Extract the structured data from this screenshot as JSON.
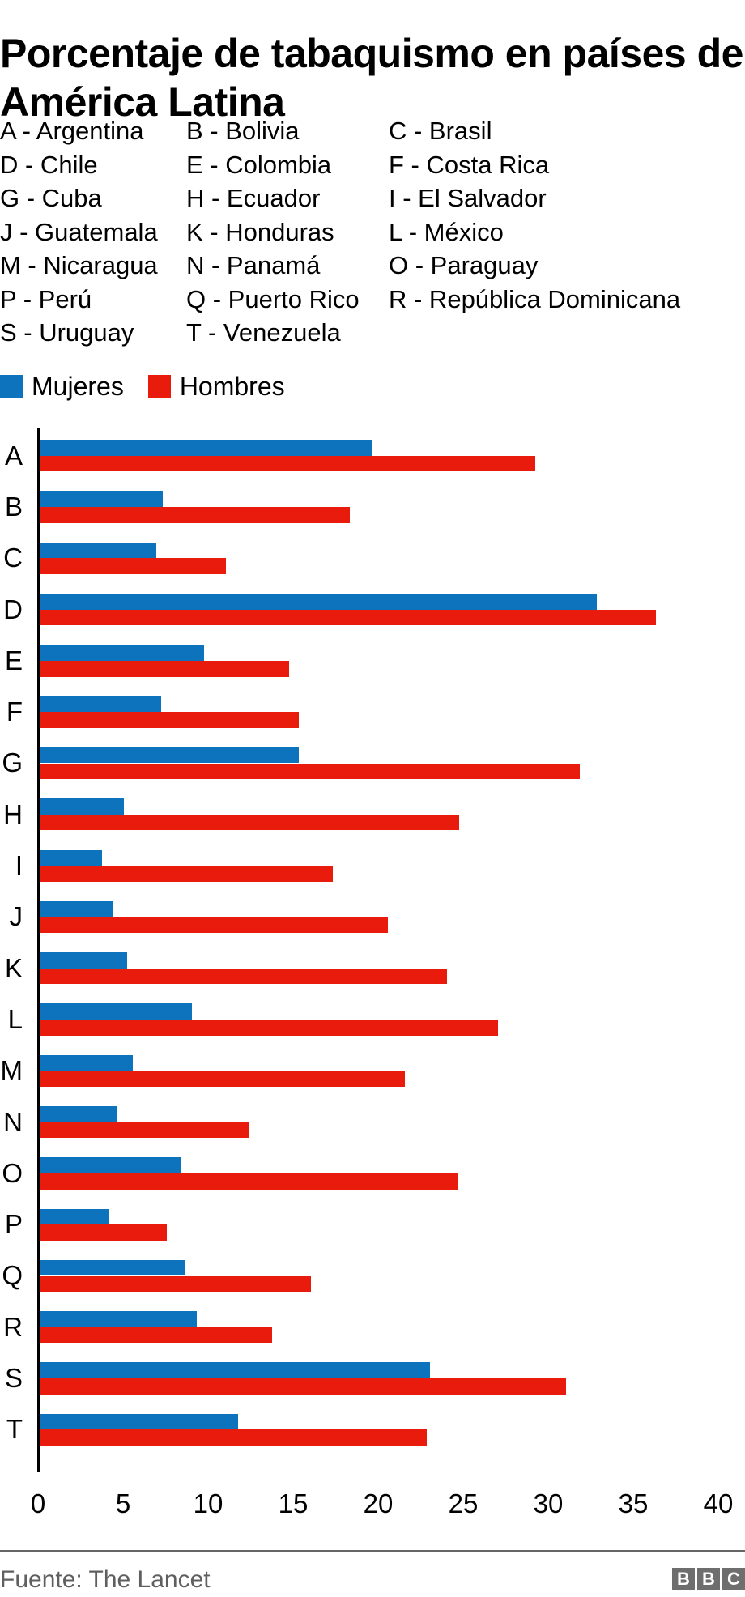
{
  "title": "Porcentaje de tabaquismo en países de América Latina",
  "country_key": [
    {
      "code": "A",
      "name": "Argentina"
    },
    {
      "code": "B",
      "name": "Bolivia"
    },
    {
      "code": "C",
      "name": "Brasil"
    },
    {
      "code": "D",
      "name": "Chile"
    },
    {
      "code": "E",
      "name": "Colombia"
    },
    {
      "code": "F",
      "name": "Costa Rica"
    },
    {
      "code": "G",
      "name": "Cuba"
    },
    {
      "code": "H",
      "name": "Ecuador"
    },
    {
      "code": "I",
      "name": "El Salvador"
    },
    {
      "code": "J",
      "name": "Guatemala"
    },
    {
      "code": "K",
      "name": "Honduras"
    },
    {
      "code": "L",
      "name": "México"
    },
    {
      "code": "M",
      "name": "Nicaragua"
    },
    {
      "code": "N",
      "name": "Panamá"
    },
    {
      "code": "O",
      "name": "Paraguay"
    },
    {
      "code": "P",
      "name": "Perú"
    },
    {
      "code": "Q",
      "name": "Puerto Rico"
    },
    {
      "code": "R",
      "name": "República Dominicana"
    },
    {
      "code": "S",
      "name": "Uruguay"
    },
    {
      "code": "T",
      "name": "Venezuela"
    }
  ],
  "legend": [
    {
      "label": "Mujeres",
      "color": "#0d73bd"
    },
    {
      "label": "Hombres",
      "color": "#e91b0c"
    }
  ],
  "chart_data": {
    "type": "bar",
    "orientation": "horizontal",
    "title": "Porcentaje de tabaquismo en países de América Latina",
    "categories": [
      "A",
      "B",
      "C",
      "D",
      "E",
      "F",
      "G",
      "H",
      "I",
      "J",
      "K",
      "L",
      "M",
      "N",
      "O",
      "P",
      "Q",
      "R",
      "S",
      "T"
    ],
    "series": [
      {
        "name": "Mujeres",
        "color": "#0d73bd",
        "values": [
          19.6,
          7.3,
          6.9,
          32.8,
          9.7,
          7.2,
          15.3,
          5.0,
          3.7,
          4.4,
          5.2,
          9.0,
          5.5,
          4.6,
          8.4,
          4.1,
          8.6,
          9.3,
          23.0,
          11.7
        ]
      },
      {
        "name": "Hombres",
        "color": "#e91b0c",
        "values": [
          29.2,
          18.3,
          11.0,
          36.3,
          14.7,
          15.3,
          31.8,
          24.7,
          17.3,
          20.5,
          24.0,
          27.0,
          21.5,
          12.4,
          24.6,
          7.5,
          16.0,
          13.7,
          31.0,
          22.8
        ]
      }
    ],
    "xlabel": "",
    "ylabel": "",
    "xlim": [
      0,
      40
    ],
    "xticks": [
      0,
      5,
      10,
      15,
      20,
      25,
      30,
      35,
      40
    ],
    "grid": false,
    "legend_position": "top-left"
  },
  "footer": {
    "source": "Fuente: The Lancet",
    "logo_blocks": [
      "B",
      "B",
      "C"
    ]
  }
}
